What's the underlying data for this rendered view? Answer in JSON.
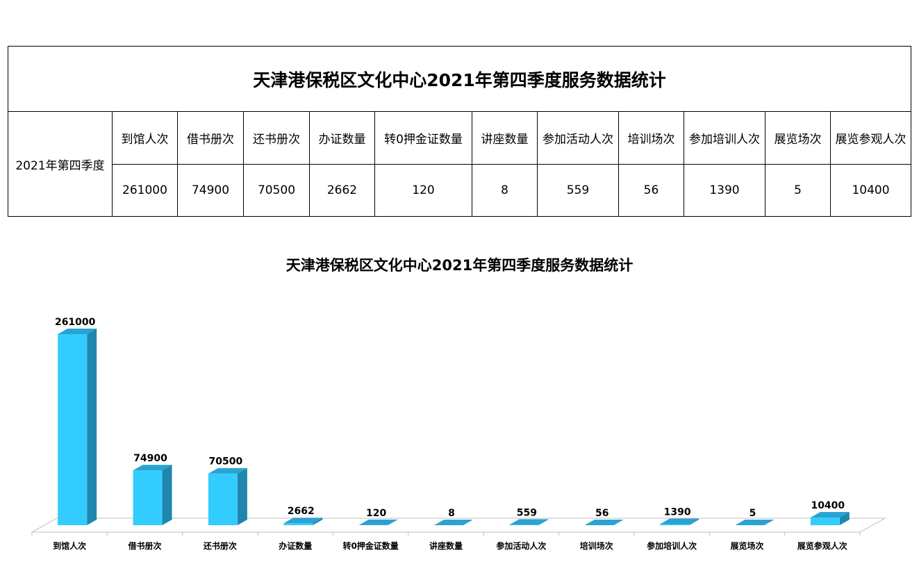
{
  "table": {
    "title": "天津港保税区文化中心2021年第四季度服务数据统计",
    "row_label": "2021年第四季度",
    "headers": [
      "到馆人次",
      "借书册次",
      "还书册次",
      "办证数量",
      "转0押金证数量",
      "讲座数量",
      "参加活动人次",
      "培训场次",
      "参加培训人次",
      "展览场次",
      "展览参观人次"
    ],
    "values": [
      "261000",
      "74900",
      "70500",
      "2662",
      "120",
      "8",
      "559",
      "56",
      "1390",
      "5",
      "10400"
    ]
  },
  "chart_data": {
    "type": "bar",
    "title": "天津港保税区文化中心2021年第四季度服务数据统计",
    "categories": [
      "到馆人次",
      "借书册次",
      "还书册次",
      "办证数量",
      "转0押金证数量",
      "讲座数量",
      "参加活动人次",
      "培训场次",
      "参加培训人次",
      "展览场次",
      "展览参观人次"
    ],
    "values": [
      261000,
      74900,
      70500,
      2662,
      120,
      8,
      559,
      56,
      1390,
      5,
      10400
    ],
    "xlabel": "",
    "ylabel": "",
    "ylim": [
      0,
      261000
    ],
    "grid": false,
    "legend": "none",
    "colors": {
      "front": "#33ccff",
      "side": "#1f86ad",
      "top": "#29a3d1"
    }
  }
}
